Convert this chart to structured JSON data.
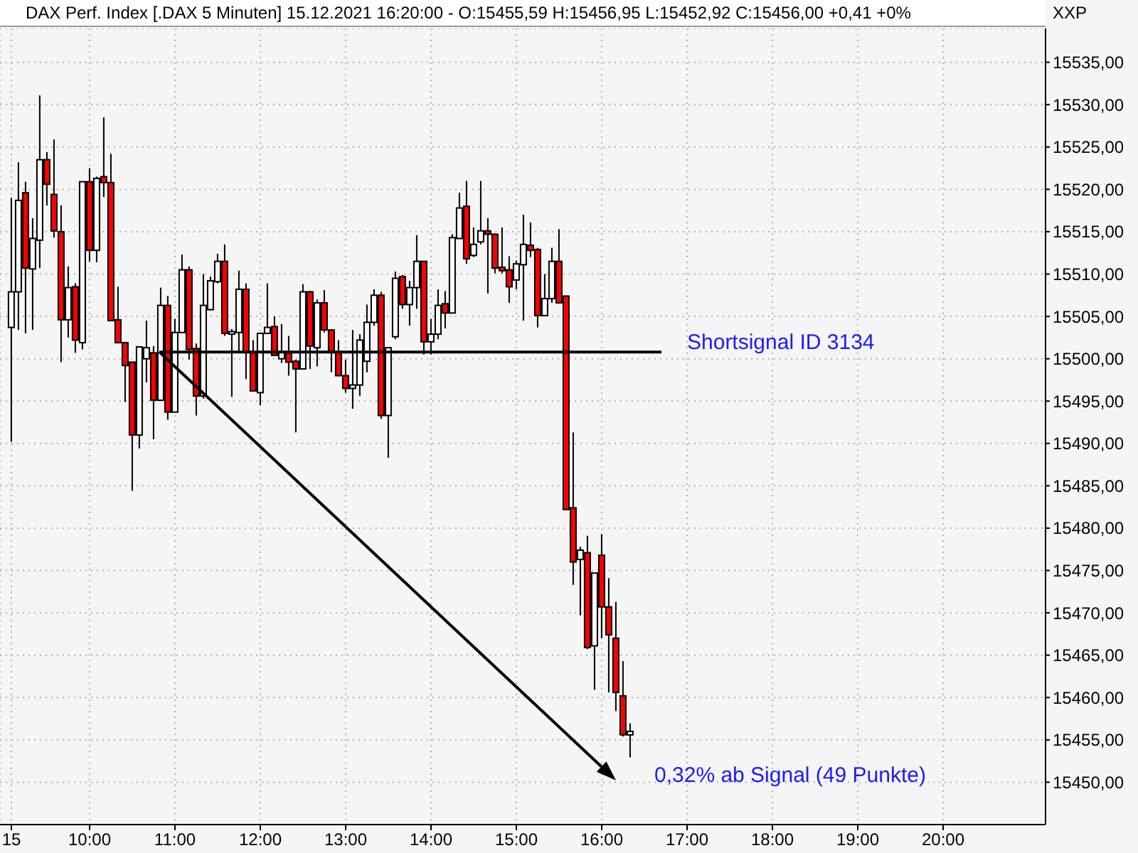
{
  "chart_data": {
    "type": "candlestick",
    "title": "DAX Perf. Index [.DAX  5 Minuten] 15.12.2021 16:20:00 - O:15455,59 H:15456,95 L:15452,92 C:15456,00 +0,41 +0%",
    "ylabel": "XXP",
    "x": [
      "2021-12-15T09:05",
      "2021-12-15T09:10",
      "2021-12-15T09:15",
      "2021-12-15T09:20",
      "2021-12-15T09:25",
      "2021-12-15T09:30",
      "2021-12-15T09:35",
      "2021-12-15T09:40",
      "2021-12-15T09:45",
      "2021-12-15T09:50",
      "2021-12-15T09:55",
      "2021-12-15T10:00",
      "2021-12-15T10:05",
      "2021-12-15T10:10",
      "2021-12-15T10:15",
      "2021-12-15T10:20",
      "2021-12-15T10:25",
      "2021-12-15T10:30",
      "2021-12-15T10:35",
      "2021-12-15T10:40",
      "2021-12-15T10:45",
      "2021-12-15T10:50",
      "2021-12-15T10:55",
      "2021-12-15T11:00",
      "2021-12-15T11:05",
      "2021-12-15T11:10",
      "2021-12-15T11:15",
      "2021-12-15T11:20",
      "2021-12-15T11:25",
      "2021-12-15T11:30",
      "2021-12-15T11:35",
      "2021-12-15T11:40",
      "2021-12-15T11:45",
      "2021-12-15T11:50",
      "2021-12-15T11:55",
      "2021-12-15T12:00",
      "2021-12-15T12:05",
      "2021-12-15T12:10",
      "2021-12-15T12:15",
      "2021-12-15T12:20",
      "2021-12-15T12:25",
      "2021-12-15T12:30",
      "2021-12-15T12:35",
      "2021-12-15T12:40",
      "2021-12-15T12:45",
      "2021-12-15T12:50",
      "2021-12-15T12:55",
      "2021-12-15T13:00",
      "2021-12-15T13:05",
      "2021-12-15T13:10",
      "2021-12-15T13:15",
      "2021-12-15T13:20",
      "2021-12-15T13:25",
      "2021-12-15T13:30",
      "2021-12-15T13:35",
      "2021-12-15T13:40",
      "2021-12-15T13:45",
      "2021-12-15T13:50",
      "2021-12-15T13:55",
      "2021-12-15T14:00",
      "2021-12-15T14:05",
      "2021-12-15T14:10",
      "2021-12-15T14:15",
      "2021-12-15T14:20",
      "2021-12-15T14:25",
      "2021-12-15T14:30",
      "2021-12-15T14:35",
      "2021-12-15T14:40",
      "2021-12-15T14:45",
      "2021-12-15T14:50",
      "2021-12-15T14:55",
      "2021-12-15T15:00",
      "2021-12-15T15:05",
      "2021-12-15T15:10",
      "2021-12-15T15:15",
      "2021-12-15T15:20",
      "2021-12-15T15:25",
      "2021-12-15T15:30",
      "2021-12-15T15:35",
      "2021-12-15T15:40",
      "2021-12-15T15:45",
      "2021-12-15T15:50",
      "2021-12-15T15:55",
      "2021-12-15T16:00",
      "2021-12-15T16:05",
      "2021-12-15T16:10",
      "2021-12-15T16:15",
      "2021-12-15T16:20"
    ],
    "ohlc": [
      [
        15503.7,
        15519.0,
        15490.2,
        15507.9
      ],
      [
        15507.9,
        15523.2,
        15503.4,
        15518.7
      ],
      [
        15519.6,
        15520.9,
        15503.0,
        15510.7
      ],
      [
        15510.6,
        15516.6,
        15503.4,
        15514.2
      ],
      [
        15514.0,
        15531.1,
        15510.7,
        15523.5
      ],
      [
        15523.5,
        15524.4,
        15518.1,
        15520.6
      ],
      [
        15519.4,
        15525.9,
        15514.3,
        15515.1
      ],
      [
        15515.0,
        15518.1,
        15499.6,
        15504.6
      ],
      [
        15504.6,
        15510.9,
        15502.5,
        15508.4
      ],
      [
        15508.5,
        15508.9,
        15500.7,
        15502.2
      ],
      [
        15501.9,
        15520.9,
        15501.1,
        15520.9
      ],
      [
        15520.9,
        15522.5,
        15511.5,
        15512.8
      ],
      [
        15512.8,
        15521.5,
        15511.4,
        15521.3
      ],
      [
        15521.5,
        15528.5,
        15519.1,
        15520.8
      ],
      [
        15520.8,
        15524.2,
        15504.5,
        15504.5
      ],
      [
        15504.6,
        15508.5,
        15501.8,
        15501.9
      ],
      [
        15501.9,
        15502.0,
        15494.9,
        15499.2
      ],
      [
        15499.6,
        15499.6,
        15484.4,
        15491.0
      ],
      [
        15491.0,
        15501.4,
        15489.4,
        15501.4
      ],
      [
        15500.0,
        15504.5,
        15497.2,
        15501.3
      ],
      [
        15500.7,
        15501.5,
        15490.5,
        15495.1
      ],
      [
        15495.1,
        15508.4,
        15495.1,
        15506.3
      ],
      [
        15506.3,
        15507.4,
        15492.8,
        15493.7
      ],
      [
        15493.7,
        15504.7,
        15493.7,
        15503.1
      ],
      [
        15503.1,
        15512.3,
        15503.1,
        15510.5
      ],
      [
        15510.5,
        15510.9,
        15499.9,
        15501.1
      ],
      [
        15501.2,
        15501.8,
        15493.3,
        15495.6
      ],
      [
        15495.6,
        15510.0,
        15495.3,
        15506.3
      ],
      [
        15505.8,
        15509.7,
        15505.7,
        15509.2
      ],
      [
        15509.1,
        15512.4,
        15508.9,
        15511.5
      ],
      [
        15511.5,
        15513.5,
        15502.7,
        15503.0
      ],
      [
        15502.9,
        15503.5,
        15495.5,
        15503.2
      ],
      [
        15503.1,
        15510.4,
        15500.8,
        15508.2
      ],
      [
        15508.2,
        15508.9,
        15497.6,
        15500.8
      ],
      [
        15500.8,
        15502.2,
        15496.2,
        15496.2
      ],
      [
        15496.0,
        15503.0,
        15494.5,
        15503.0
      ],
      [
        15503.0,
        15508.9,
        15502.9,
        15503.7
      ],
      [
        15503.8,
        15505.0,
        15500.3,
        15500.4
      ],
      [
        15500.0,
        15504.1,
        15499.5,
        15500.8
      ],
      [
        15500.7,
        15502.7,
        15498.0,
        15499.6
      ],
      [
        15499.7,
        15499.9,
        15491.3,
        15498.8
      ],
      [
        15498.8,
        15508.8,
        15498.8,
        15507.9
      ],
      [
        15507.9,
        15508.0,
        15498.8,
        15501.5
      ],
      [
        15501.3,
        15507.0,
        15499.1,
        15506.6
      ],
      [
        15506.6,
        15508.1,
        15503.1,
        15503.4
      ],
      [
        15503.4,
        15503.5,
        15498.4,
        15500.8
      ],
      [
        15500.8,
        15502.2,
        15498.0,
        15498.0
      ],
      [
        15498.0,
        15499.9,
        15496.0,
        15496.5
      ],
      [
        15496.5,
        15503.4,
        15494.1,
        15496.9
      ],
      [
        15496.9,
        15502.9,
        15495.6,
        15502.2
      ],
      [
        15499.7,
        15506.4,
        15498.4,
        15504.3
      ],
      [
        15504.3,
        15508.2,
        15503.9,
        15507.5
      ],
      [
        15507.5,
        15507.9,
        15492.9,
        15493.3
      ],
      [
        15493.3,
        15501.3,
        15488.3,
        15501.3
      ],
      [
        15502.6,
        15510.3,
        15502.3,
        15509.5
      ],
      [
        15509.7,
        15509.9,
        15505.9,
        15506.4
      ],
      [
        15506.4,
        15509.2,
        15503.9,
        15508.4
      ],
      [
        15508.4,
        15514.6,
        15505.9,
        15511.5
      ],
      [
        15511.5,
        15511.5,
        15500.5,
        15502.0
      ],
      [
        15502.0,
        15504.7,
        15500.5,
        15502.9
      ],
      [
        15502.9,
        15508.2,
        15502.3,
        15506.3
      ],
      [
        15506.5,
        15508.0,
        15503.6,
        15505.4
      ],
      [
        15505.4,
        15514.7,
        15505.4,
        15514.3
      ],
      [
        15514.2,
        15519.6,
        15514.2,
        15517.8
      ],
      [
        15518.0,
        15521.0,
        15511.2,
        15511.8
      ],
      [
        15512.2,
        15515.5,
        15512.0,
        15513.5
      ],
      [
        15513.8,
        15521.0,
        15513.5,
        15515.1
      ],
      [
        15515.1,
        15516.6,
        15507.7,
        15514.7
      ],
      [
        15514.7,
        15514.8,
        15510.1,
        15510.7
      ],
      [
        15510.8,
        15515.5,
        15510.1,
        15510.4
      ],
      [
        15510.5,
        15512.1,
        15506.6,
        15508.5
      ],
      [
        15509.3,
        15511.6,
        15508.2,
        15511.2
      ],
      [
        15511.1,
        15517.0,
        15504.5,
        15513.5
      ],
      [
        15513.4,
        15516.1,
        15512.0,
        15512.8
      ],
      [
        15512.9,
        15513.1,
        15503.7,
        15505.1
      ],
      [
        15505.1,
        15510.0,
        15505.1,
        15507.1
      ],
      [
        15507.1,
        15513.1,
        15506.6,
        15511.5
      ],
      [
        15511.5,
        15515.3,
        15506.5,
        15506.6
      ],
      [
        15507.4,
        15507.4,
        15482.2,
        15482.2
      ],
      [
        15482.4,
        15491.3,
        15473.3,
        15476.0
      ],
      [
        15476.3,
        15477.8,
        15469.7,
        15477.4
      ],
      [
        15477.1,
        15479.1,
        15465.7,
        15465.9
      ],
      [
        15466.1,
        15474.7,
        15460.9,
        15474.7
      ],
      [
        15476.8,
        15479.3,
        15467.0,
        15470.7
      ],
      [
        15470.7,
        15474.1,
        15460.6,
        15467.4
      ],
      [
        15467.0,
        15471.3,
        15458.4,
        15460.6
      ],
      [
        15460.2,
        15464.3,
        15455.4,
        15455.6
      ],
      [
        15455.59,
        15456.95,
        15452.92,
        15456.0
      ]
    ],
    "series": [
      {
        "type": "line",
        "color": "#000000",
        "x": [
          "2021-12-15T10:49",
          "2021-12-15T16:42"
        ],
        "values": [
          15500.8,
          15500.8
        ]
      }
    ],
    "annotations": [
      "Shortsignal ID 3134",
      "0,32% ab Signal (49 Punkte)"
    ],
    "xlim": [
      "2021-12-15T08:57",
      "2021-12-15T21:12"
    ],
    "xticks": [
      {
        "value": "2021-12-15T09:05",
        "label": "15"
      },
      {
        "value": "2021-12-15T10:00",
        "label": "10:00"
      },
      {
        "value": "2021-12-15T11:00",
        "label": "11:00"
      },
      {
        "value": "2021-12-15T12:00",
        "label": "12:00"
      },
      {
        "value": "2021-12-15T13:00",
        "label": "13:00"
      },
      {
        "value": "2021-12-15T14:00",
        "label": "14:00"
      },
      {
        "value": "2021-12-15T15:00",
        "label": "15:00"
      },
      {
        "value": "2021-12-15T16:00",
        "label": "16:00"
      },
      {
        "value": "2021-12-15T17:00",
        "label": "17:00"
      },
      {
        "value": "2021-12-15T18:00",
        "label": "18:00"
      },
      {
        "value": "2021-12-15T19:00",
        "label": "19:00"
      },
      {
        "value": "2021-12-15T20:00",
        "label": "20:00"
      }
    ],
    "ylim": [
      15445,
      15539
    ],
    "yticks": [
      {
        "value": 15450,
        "label": "15450,00"
      },
      {
        "value": 15455,
        "label": "15455,00"
      },
      {
        "value": 15460,
        "label": "15460,00"
      },
      {
        "value": 15465,
        "label": "15465,00"
      },
      {
        "value": 15470,
        "label": "15470,00"
      },
      {
        "value": 15475,
        "label": "15475,00"
      },
      {
        "value": 15480,
        "label": "15480,00"
      },
      {
        "value": 15485,
        "label": "15485,00"
      },
      {
        "value": 15490,
        "label": "15490,00"
      },
      {
        "value": 15495,
        "label": "15495,00"
      },
      {
        "value": 15500,
        "label": "15500,00"
      },
      {
        "value": 15505,
        "label": "15505,00"
      },
      {
        "value": 15510,
        "label": "15510,00"
      },
      {
        "value": 15515,
        "label": "15515,00"
      },
      {
        "value": 15520,
        "label": "15520,00"
      },
      {
        "value": 15525,
        "label": "15525,00"
      },
      {
        "value": 15530,
        "label": "15530,00"
      },
      {
        "value": 15535,
        "label": "15535,00"
      }
    ],
    "grid": true
  }
}
